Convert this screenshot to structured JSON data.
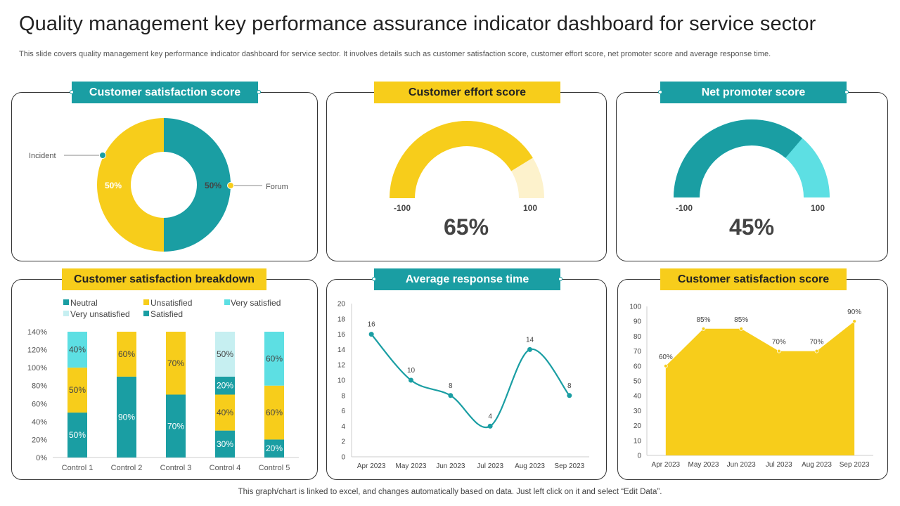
{
  "page": {
    "title": "Quality management key performance assurance indicator dashboard for service sector",
    "subtitle": "This slide covers quality management key performance indicator dashboard for service sector. It involves details such as customer satisfaction score, customer effort score, net promoter score and average response time.",
    "footer": "This graph/chart is linked to excel,  and changes automatically based on data. Just left click on it and select “Edit Data”."
  },
  "colors": {
    "teal": "#1a9ea3",
    "yellow": "#f7cd1b",
    "light_teal": "#5ddfe3",
    "light_yellow": "#fdf2cc",
    "pale_teal": "#c6eff1"
  },
  "chart_data": [
    {
      "type": "pie",
      "title": "Customer satisfaction score",
      "variant": "donut",
      "categories": [
        "Incident",
        "Forum"
      ],
      "values": [
        50,
        50
      ],
      "labels": [
        "50%",
        "50%"
      ]
    },
    {
      "type": "pie",
      "title": "Customer effort score",
      "variant": "gauge",
      "min": -100,
      "max": 100,
      "value": 65,
      "min_label": "-100",
      "max_label": "100",
      "value_label": "65%"
    },
    {
      "type": "pie",
      "title": "Net promoter score",
      "variant": "gauge",
      "min": -100,
      "max": 100,
      "value": 45,
      "min_label": "-100",
      "max_label": "100",
      "value_label": "45%"
    },
    {
      "type": "bar",
      "stacked": true,
      "title": "Customer satisfaction breakdown",
      "categories": [
        "Control 1",
        "Control 2",
        "Control 3",
        "Control 4",
        "Control 5"
      ],
      "legend": [
        "Neutral",
        "Unsatisfied",
        "Very satisfied",
        "Very unsatisfied",
        "Satisfied"
      ],
      "series": [
        {
          "name": "Satisfied",
          "values": [
            50,
            90,
            70,
            30,
            20
          ],
          "labels": [
            "50%",
            "90%",
            "70%",
            "30%",
            "20%"
          ]
        },
        {
          "name": "Unsatisfied",
          "values": [
            50,
            60,
            70,
            40,
            60
          ],
          "labels": [
            "50%",
            "60%",
            "70%",
            "40%",
            "60%"
          ]
        },
        {
          "name": "Neutral",
          "values": [
            0,
            0,
            0,
            20,
            0
          ],
          "labels": [
            "",
            "",
            "",
            "20%",
            ""
          ]
        },
        {
          "name": "Very unsatisfied",
          "values": [
            0,
            0,
            0,
            50,
            0
          ],
          "labels": [
            "",
            "",
            "",
            "50%",
            ""
          ]
        },
        {
          "name": "Very satisfied",
          "values": [
            40,
            0,
            0,
            0,
            60
          ],
          "labels": [
            "40%",
            "",
            "",
            "",
            "60%"
          ]
        }
      ],
      "yticks": [
        "0%",
        "20%",
        "40%",
        "60%",
        "80%",
        "100%",
        "120%",
        "140%"
      ],
      "ylim": [
        0,
        140
      ]
    },
    {
      "type": "line",
      "title": "Average response time",
      "categories": [
        "Apr 2023",
        "May 2023",
        "Jun 2023",
        "Jul 2023",
        "Aug 2023",
        "Sep 2023"
      ],
      "values": [
        16,
        10,
        8,
        4,
        14,
        8
      ],
      "labels": [
        "16",
        "10",
        "8",
        "4",
        "14",
        "8"
      ],
      "yticks": [
        "0",
        "2",
        "4",
        "6",
        "8",
        "10",
        "12",
        "14",
        "16",
        "18",
        "20"
      ],
      "ylim": [
        0,
        20
      ]
    },
    {
      "type": "area",
      "title": "Customer satisfaction score",
      "categories": [
        "Apr 2023",
        "May 2023",
        "Jun 2023",
        "Jul 2023",
        "Aug 2023",
        "Sep 2023"
      ],
      "values": [
        60,
        85,
        85,
        70,
        70,
        90
      ],
      "labels": [
        "60%",
        "85%",
        "85%",
        "70%",
        "70%",
        "90%"
      ],
      "yticks": [
        "0",
        "10",
        "20",
        "30",
        "40",
        "50",
        "60",
        "70",
        "80",
        "90",
        "100"
      ],
      "ylim": [
        0,
        100
      ]
    }
  ],
  "donut_legend": {
    "left": "Incident",
    "right": "Forum"
  }
}
